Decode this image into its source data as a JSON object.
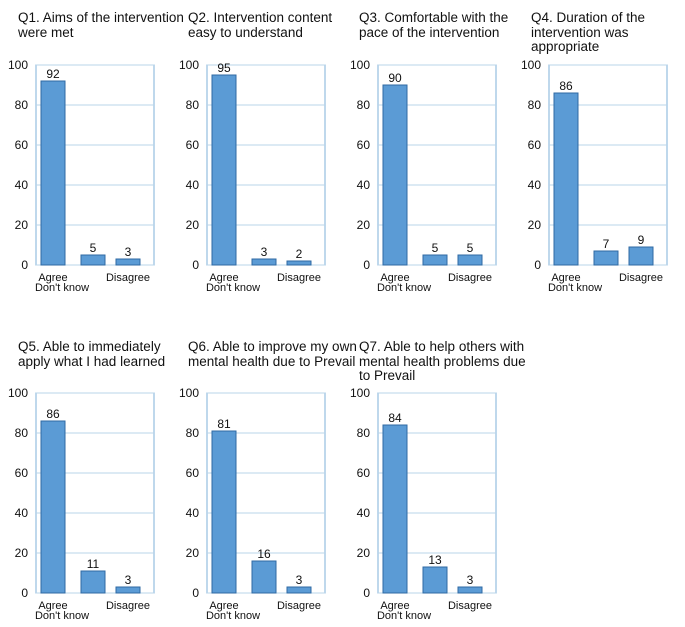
{
  "figure": {
    "colors": {
      "bar_fill": "#5b9bd5",
      "bar_stroke": "#2f6aa3",
      "grid": "#b8d4ea",
      "axis": "#7fb0d8"
    }
  },
  "chart_data": [
    {
      "type": "bar",
      "title": "Q1. Aims of the intervention were met",
      "categories": [
        "Agree",
        "Don't know",
        "Disagree"
      ],
      "values": [
        92,
        5,
        3
      ],
      "ylim": [
        0,
        100
      ],
      "yticks": [
        0,
        20,
        40,
        60,
        80,
        100
      ],
      "grid": true
    },
    {
      "type": "bar",
      "title": "Q2. Intervention content easy to understand",
      "categories": [
        "Agree",
        "Don't know",
        "Disagree"
      ],
      "values": [
        95,
        3,
        2
      ],
      "ylim": [
        0,
        100
      ],
      "yticks": [
        0,
        20,
        40,
        60,
        80,
        100
      ],
      "grid": true
    },
    {
      "type": "bar",
      "title": "Q3. Comfortable with the pace of the intervention",
      "categories": [
        "Agree",
        "Don't know",
        "Disagree"
      ],
      "values": [
        90,
        5,
        5
      ],
      "ylim": [
        0,
        100
      ],
      "yticks": [
        0,
        20,
        40,
        60,
        80,
        100
      ],
      "grid": true
    },
    {
      "type": "bar",
      "title": "Q4. Duration of the intervention was appropriate",
      "categories": [
        "Agree",
        "Don't know",
        "Disagree"
      ],
      "values": [
        86,
        7,
        9
      ],
      "ylim": [
        0,
        100
      ],
      "yticks": [
        0,
        20,
        40,
        60,
        80,
        100
      ],
      "grid": true
    },
    {
      "type": "bar",
      "title": "Q5. Able to immediately apply what I had learned",
      "categories": [
        "Agree",
        "Don't know",
        "Disagree"
      ],
      "values": [
        86,
        11,
        3
      ],
      "ylim": [
        0,
        100
      ],
      "yticks": [
        0,
        20,
        40,
        60,
        80,
        100
      ],
      "grid": true
    },
    {
      "type": "bar",
      "title": "Q6. Able to improve my own mental health due to Prevail",
      "categories": [
        "Agree",
        "Don't know",
        "Disagree"
      ],
      "values": [
        81,
        16,
        3
      ],
      "ylim": [
        0,
        100
      ],
      "yticks": [
        0,
        20,
        40,
        60,
        80,
        100
      ],
      "grid": true
    },
    {
      "type": "bar",
      "title": "Q7. Able to help others with mental health problems due to Prevail",
      "categories": [
        "Agree",
        "Don't know",
        "Disagree"
      ],
      "values": [
        84,
        13,
        3
      ],
      "ylim": [
        0,
        100
      ],
      "yticks": [
        0,
        20,
        40,
        60,
        80,
        100
      ],
      "grid": true
    }
  ]
}
